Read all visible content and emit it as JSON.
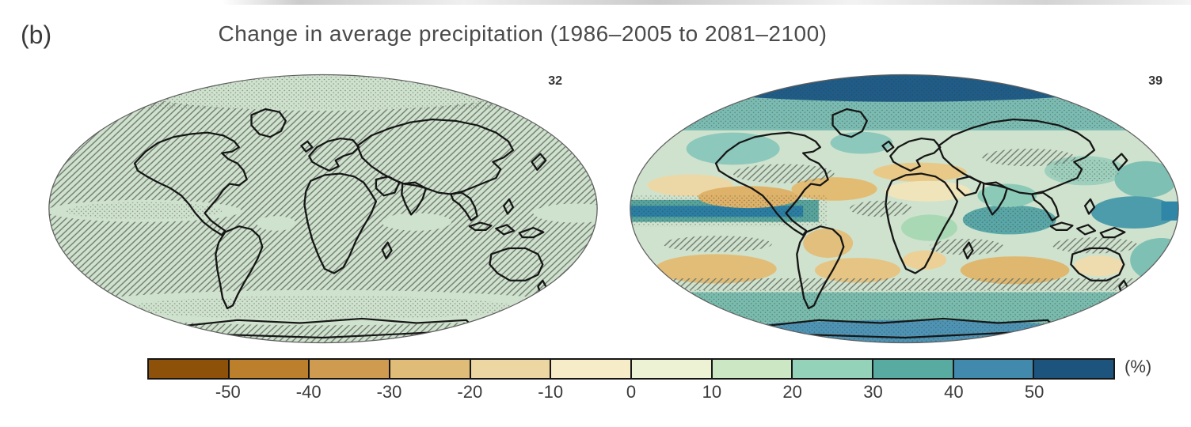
{
  "figure": {
    "panel_label": "(b)",
    "title": "Change in average precipitation (1986–2005 to 2081–2100)",
    "maps": [
      {
        "id": "left",
        "model_count": "32"
      },
      {
        "id": "right",
        "model_count": "39"
      }
    ],
    "colorbar": {
      "unit_label": "(%)",
      "ticks": [
        "-50",
        "-40",
        "-30",
        "-20",
        "-10",
        "0",
        "10",
        "20",
        "30",
        "40",
        "50"
      ],
      "segment_colors": [
        "#8e5109",
        "#bc7f2c",
        "#cf9b50",
        "#dfbc78",
        "#ecd7a2",
        "#f6ecc8",
        "#eef2d4",
        "#cbe7c4",
        "#94d2ba",
        "#57aba1",
        "#4289ae",
        "#1d547d"
      ]
    }
  },
  "chart_data": {
    "type": "heatmap",
    "subtype": "global map pair (filled-contour world maps, Robinson-style projection)",
    "title": "Change in average precipitation (1986–2005 to 2081–2100)",
    "panel_label": "(b)",
    "panels": [
      {
        "position": "left",
        "model_count": 32,
        "appearance": "mostly pale green with grey diagonal hatching; light-green unhatched bands at equator, southern ocean and stippled arctic cap"
      },
      {
        "position": "right",
        "model_count": 39,
        "appearance": "dark blue stippled arctic cap, teal high-latitude bands, dark teal equatorial Pacific band, orange/tan drying patches in subtropics (Mediterranean, subtropical oceans, southern Africa, Amazon, Australia), hatched transition zones, stippled high-signal regions"
      }
    ],
    "colorbar": {
      "label": "(%)",
      "ticks": [
        -50,
        -40,
        -30,
        -20,
        -10,
        0,
        10,
        20,
        30,
        40,
        50
      ],
      "range_open_ended": true,
      "colors": [
        "#8e5109",
        "#bc7f2c",
        "#cf9b50",
        "#dfbc78",
        "#ecd7a2",
        "#f6ecc8",
        "#eef2d4",
        "#cbe7c4",
        "#94d2ba",
        "#57aba1",
        "#4289ae",
        "#1d547d"
      ],
      "position": "bottom"
    }
  }
}
